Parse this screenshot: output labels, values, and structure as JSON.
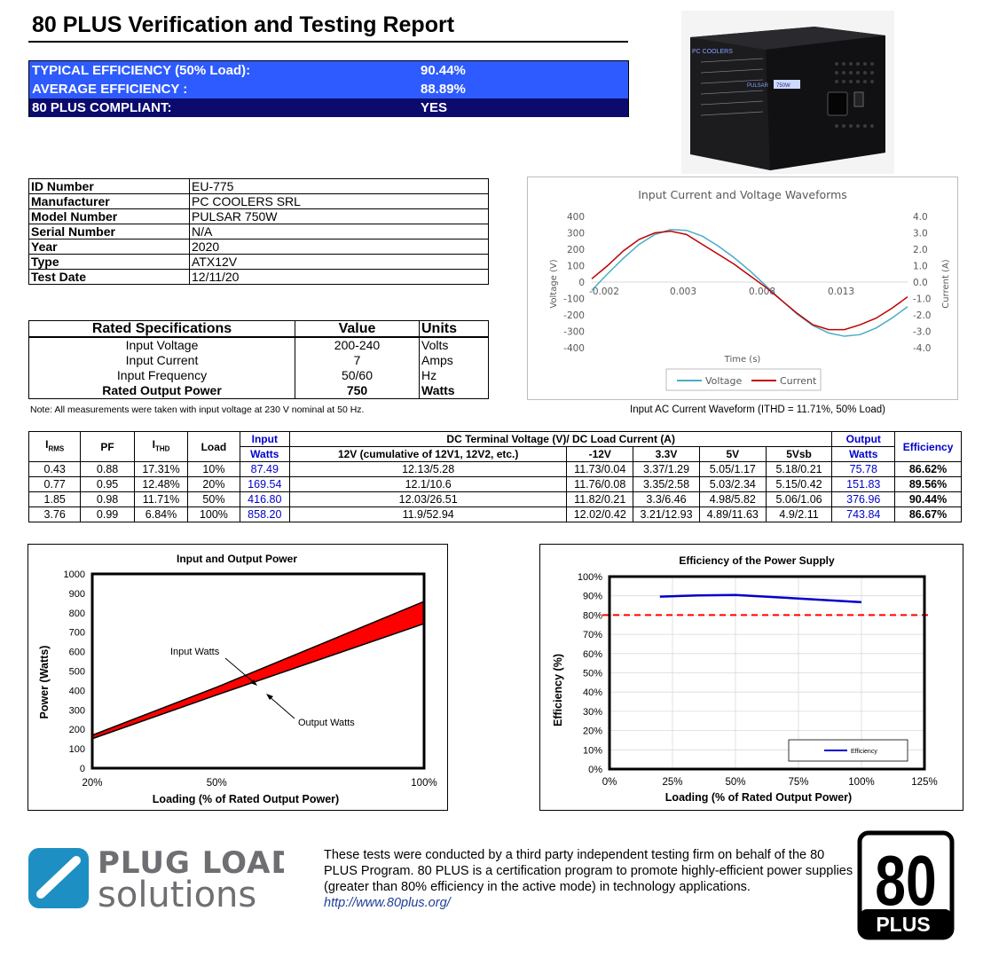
{
  "title": "80 PLUS Verification and Testing Report",
  "summary": [
    {
      "label": "TYPICAL EFFICIENCY (50% Load):",
      "value": "90.44%"
    },
    {
      "label": "AVERAGE EFFICIENCY :",
      "value": "88.89%"
    },
    {
      "label": "80 PLUS COMPLIANT:",
      "value": "YES"
    }
  ],
  "photo": {
    "brand_text": "PC COOLERS",
    "model_text": "PULSAR",
    "badge_text": "750W"
  },
  "id_table": [
    {
      "key": "ID Number",
      "value": "EU-775"
    },
    {
      "key": "Manufacturer",
      "value": "PC COOLERS SRL"
    },
    {
      "key": "Model Number",
      "value": "PULSAR 750W"
    },
    {
      "key": "Serial Number",
      "value": "N/A"
    },
    {
      "key": "Year",
      "value": "2020"
    },
    {
      "key": "Type",
      "value": "ATX12V"
    },
    {
      "key": "Test Date",
      "value": "12/11/20"
    }
  ],
  "rated_specs": {
    "headers": [
      "Rated Specifications",
      "Value",
      "Units"
    ],
    "rows": [
      [
        "Input Voltage",
        "200-240",
        "Volts"
      ],
      [
        "Input Current",
        "7",
        "Amps"
      ],
      [
        "Input Frequency",
        "50/60",
        "Hz"
      ],
      [
        "Rated Output Power",
        "750",
        "Watts"
      ]
    ]
  },
  "note": "Note: All measurements were taken with input voltage at 230 V nominal at 50 Hz.",
  "waveform": {
    "chart_data": {
      "type": "line",
      "title": "Input Current and Voltage Waveforms",
      "xlabel": "Time (s)",
      "ylabel_left": "Voltage (V)",
      "ylabel_right": "Current (A)",
      "x_ticks": [
        "-0.002",
        "0.003",
        "0.008",
        "0.013"
      ],
      "y_left_ticks": [
        "400",
        "300",
        "200",
        "100",
        "0",
        "-100",
        "-200",
        "-300",
        "-400"
      ],
      "y_right_ticks": [
        "4.0",
        "3.0",
        "2.0",
        "1.0",
        "0.0",
        "-1.0",
        "-2.0",
        "-3.0",
        "-4.0"
      ],
      "xlim": [
        -0.002,
        0.018
      ],
      "ylim_left": [
        -400,
        400
      ],
      "ylim_right": [
        -4,
        4
      ],
      "series": [
        {
          "name": "Voltage",
          "color": "#4bacc6",
          "x": [
            -0.002,
            -0.001,
            0,
            0.001,
            0.002,
            0.003,
            0.004,
            0.005,
            0.006,
            0.007,
            0.008,
            0.009,
            0.01,
            0.011,
            0.012,
            0.013,
            0.014,
            0.015,
            0.016,
            0.017,
            0.018
          ],
          "y": [
            -50,
            50,
            145,
            230,
            290,
            320,
            315,
            280,
            220,
            150,
            70,
            -20,
            -110,
            -195,
            -265,
            -310,
            -330,
            -320,
            -280,
            -220,
            -150
          ]
        },
        {
          "name": "Current",
          "color": "#c00000",
          "x": [
            -0.002,
            -0.001,
            0,
            0.001,
            0.002,
            0.003,
            0.004,
            0.005,
            0.006,
            0.007,
            0.008,
            0.009,
            0.01,
            0.011,
            0.012,
            0.013,
            0.014,
            0.015,
            0.016,
            0.017,
            0.018
          ],
          "y": [
            0.2,
            1.0,
            1.9,
            2.6,
            3.0,
            3.1,
            2.9,
            2.3,
            1.7,
            1.1,
            0.4,
            -0.3,
            -1.1,
            -1.9,
            -2.6,
            -2.9,
            -2.9,
            -2.6,
            -2.2,
            -1.6,
            -0.9
          ]
        }
      ]
    }
  },
  "waveform_caption": "Input AC Current Waveform (ITHD = 11.71%, 50% Load)",
  "main_table": {
    "h_irms": "I",
    "h_irms_sub": "RMS",
    "h_pf": "PF",
    "h_ithd": "I",
    "h_ithd_sub": "THD",
    "h_load": "Load",
    "h_input": "Input",
    "h_input_watts": "Watts",
    "h_dc": "DC Terminal Voltage (V)/ DC Load Current (A)",
    "h_dc_cols": [
      "12V (cumulative of 12V1, 12V2, etc.)",
      "-12V",
      "3.3V",
      "5V",
      "5Vsb"
    ],
    "h_output": "Output",
    "h_output_watts": "Watts",
    "h_eff": "Efficiency",
    "rows": [
      [
        "0.43",
        "0.88",
        "17.31%",
        "10%",
        "87.49",
        "12.13/5.28",
        "11.73/0.04",
        "3.37/1.29",
        "5.05/1.17",
        "5.18/0.21",
        "75.78",
        "86.62%"
      ],
      [
        "0.77",
        "0.95",
        "12.48%",
        "20%",
        "169.54",
        "12.1/10.6",
        "11.76/0.08",
        "3.35/2.58",
        "5.03/2.34",
        "5.15/0.42",
        "151.83",
        "89.56%"
      ],
      [
        "1.85",
        "0.98",
        "11.71%",
        "50%",
        "416.80",
        "12.03/26.51",
        "11.82/0.21",
        "3.3/6.46",
        "4.98/5.82",
        "5.06/1.06",
        "376.96",
        "90.44%"
      ],
      [
        "3.76",
        "0.99",
        "6.84%",
        "100%",
        "858.20",
        "11.9/52.94",
        "12.02/0.42",
        "3.21/12.93",
        "4.89/11.63",
        "4.9/2.11",
        "743.84",
        "86.67%"
      ]
    ]
  },
  "power_chart": {
    "chart_data": {
      "type": "area",
      "title": "Input and Output Power",
      "xlabel": "Loading (% of Rated Output Power)",
      "ylabel": "Power (Watts)",
      "categories": [
        "20%",
        "50%",
        "100%"
      ],
      "ylim": [
        0,
        1000
      ],
      "y_ticks": [
        "1000",
        "900",
        "800",
        "700",
        "600",
        "500",
        "400",
        "300",
        "200",
        "100",
        "0"
      ],
      "series": [
        {
          "name": "Input Watts",
          "values": [
            169.54,
            416.8,
            858.2
          ]
        },
        {
          "name": "Output Watts",
          "values": [
            151.83,
            376.96,
            743.84
          ]
        }
      ],
      "fill_color": "#ff0000",
      "annotations": [
        "Input Watts",
        "Output Watts"
      ]
    }
  },
  "eff_chart": {
    "chart_data": {
      "type": "line",
      "title": "Efficiency of the Power Supply",
      "xlabel": "Loading (% of Rated Output Power)",
      "ylabel": "Efficiency (%)",
      "x_ticks": [
        "0%",
        "25%",
        "50%",
        "75%",
        "100%",
        "125%"
      ],
      "y_ticks": [
        "100%",
        "90%",
        "80%",
        "70%",
        "60%",
        "50%",
        "40%",
        "30%",
        "20%",
        "10%",
        "0%"
      ],
      "xlim": [
        0,
        125
      ],
      "ylim": [
        0,
        100
      ],
      "series": [
        {
          "name": "Efficiency",
          "color": "#0000cc",
          "x": [
            20,
            35,
            50,
            75,
            100
          ],
          "y": [
            89.56,
            90.2,
            90.44,
            88.6,
            86.67
          ]
        }
      ],
      "threshold": {
        "y": 80,
        "color": "#ff0000",
        "style": "dashed"
      },
      "legend": "bottom-right"
    }
  },
  "footer": {
    "logo_line1": "PLUG LOAD",
    "logo_line2": "solutions",
    "text": "These tests were conducted by a third party independent testing firm on behalf of the 80 PLUS Program. 80 PLUS is a certification program to promote highly-efficient power supplies (greater than 80% efficiency in the active mode) in technology applications.",
    "link": "http://www.80plus.org/",
    "badge_num": "80",
    "badge_word": "PLUS"
  }
}
